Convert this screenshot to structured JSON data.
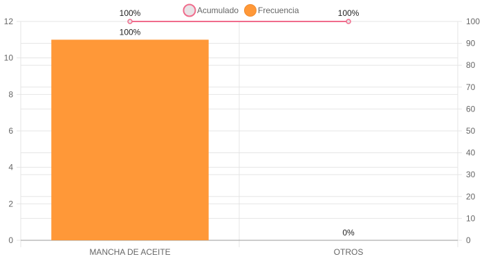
{
  "chart_data": {
    "type": "bar",
    "categories": [
      "MANCHA DE ACEITE",
      "OTROS"
    ],
    "series": [
      {
        "name": "Frecuencia",
        "type": "bar",
        "axis": "left",
        "values": [
          11,
          0
        ],
        "labels": [
          "100%",
          "0%"
        ],
        "color": "#FF9838"
      },
      {
        "name": "Acumulado",
        "type": "line",
        "axis": "right",
        "values": [
          100,
          100
        ],
        "labels": [
          "100%",
          "100%"
        ],
        "color": "#F06C8C",
        "point_fill": "#E8E3E6"
      }
    ],
    "y_left": {
      "min": 0,
      "max": 12,
      "ticks": [
        0,
        2,
        4,
        6,
        8,
        10,
        12
      ]
    },
    "y_right": {
      "min": 0,
      "max": 100,
      "ticks": [
        0,
        10,
        20,
        30,
        40,
        50,
        60,
        70,
        80,
        90,
        100
      ]
    },
    "legend": {
      "position": "top",
      "items": [
        "Acumulado",
        "Frecuencia"
      ]
    },
    "grid": true,
    "title": "",
    "xlabel": "",
    "ylabel": ""
  }
}
